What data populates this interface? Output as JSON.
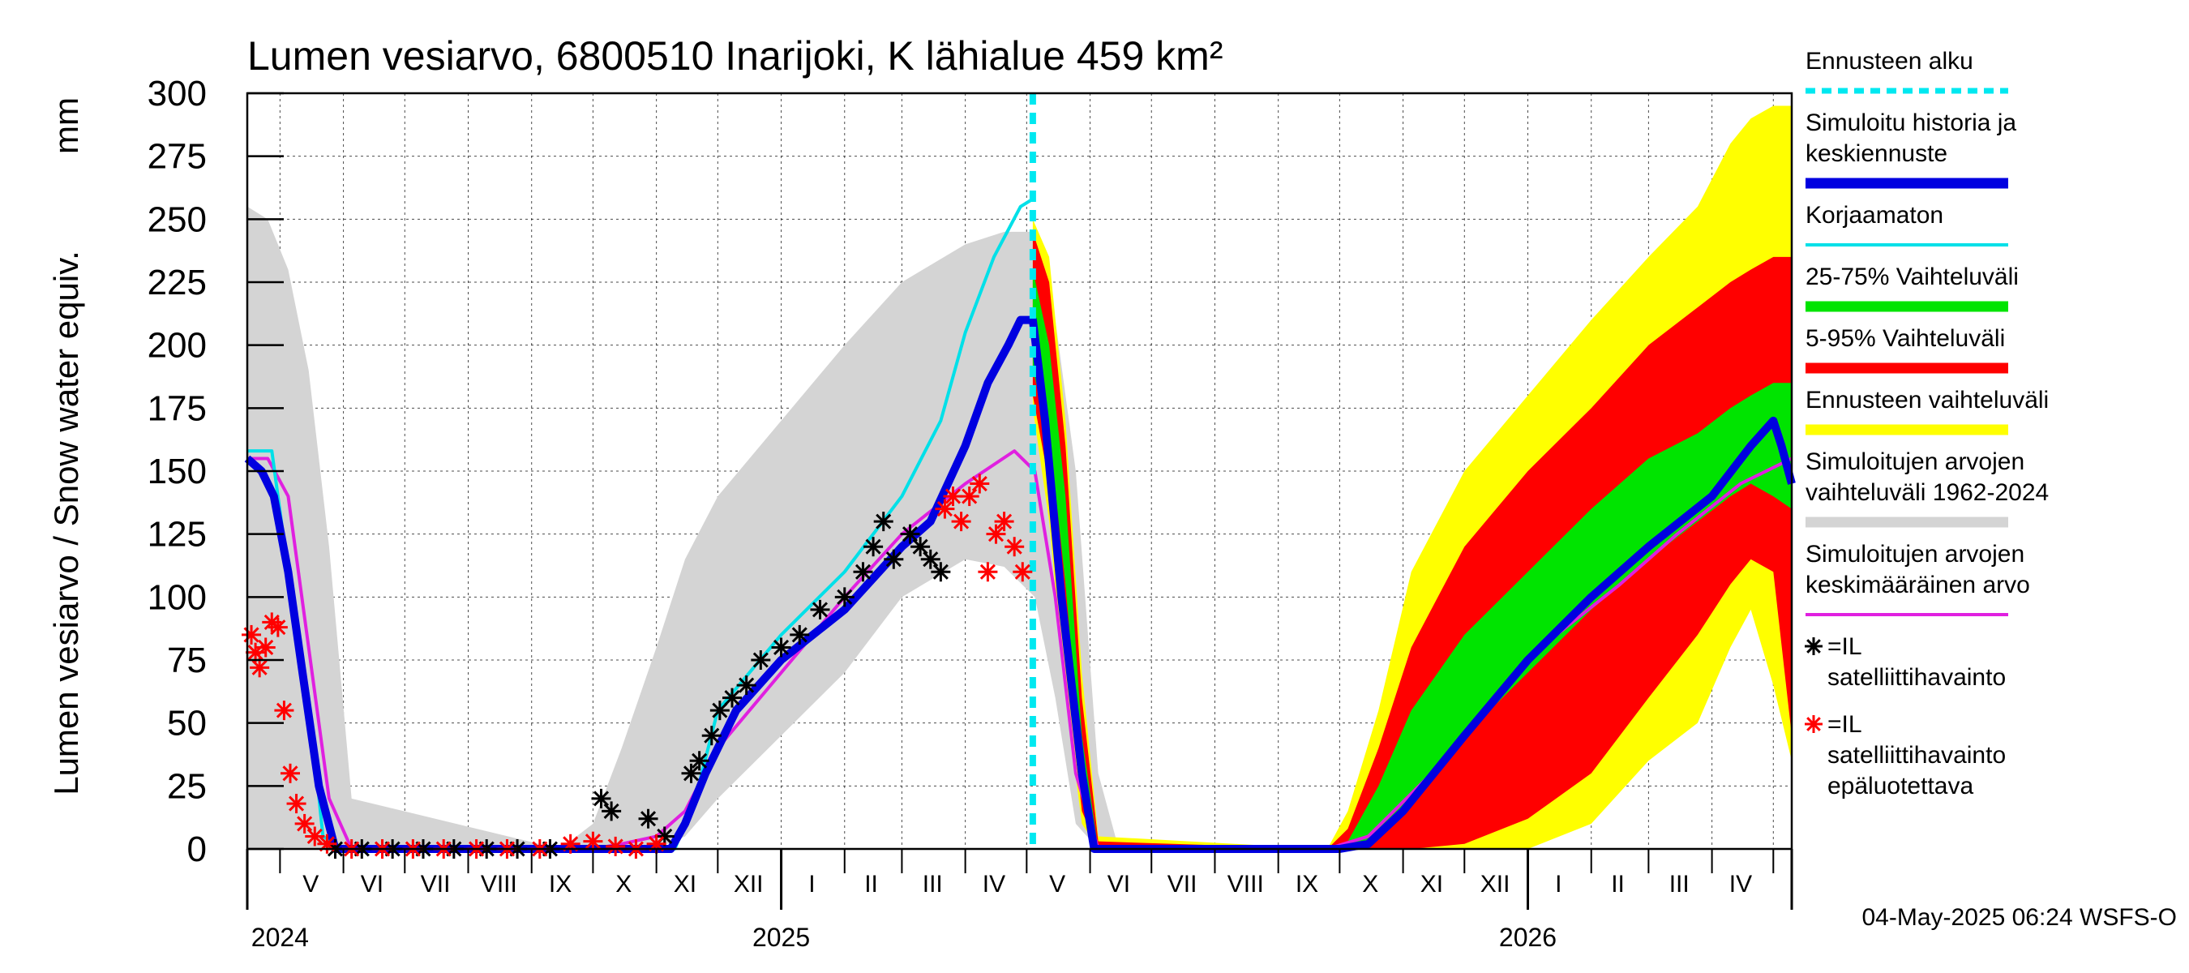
{
  "chart_data": {
    "type": "line",
    "title": "Lumen vesiarvo, 6800510 Inarijoki, K lähialue 459 km²",
    "ylabel": "Lumen vesiarvo / Snow water equiv.",
    "yunit": "mm",
    "ylim": [
      0,
      300
    ],
    "yticks": [
      0,
      25,
      50,
      75,
      100,
      125,
      150,
      175,
      200,
      225,
      250,
      275,
      300
    ],
    "x_start": "2024-04-15",
    "x_end": "2026-05-10",
    "forecast_start": "2025-05-04",
    "month_labels": [
      {
        "label": "V",
        "date": "2024-05-16"
      },
      {
        "label": "VI",
        "date": "2024-06-15"
      },
      {
        "label": "VII",
        "date": "2024-07-16"
      },
      {
        "label": "VIII",
        "date": "2024-08-16"
      },
      {
        "label": "IX",
        "date": "2024-09-15"
      },
      {
        "label": "X",
        "date": "2024-10-16"
      },
      {
        "label": "XI",
        "date": "2024-11-15"
      },
      {
        "label": "XII",
        "date": "2024-12-16"
      },
      {
        "label": "I",
        "date": "2025-01-16"
      },
      {
        "label": "II",
        "date": "2025-02-14"
      },
      {
        "label": "III",
        "date": "2025-03-16"
      },
      {
        "label": "IV",
        "date": "2025-04-15"
      },
      {
        "label": "V",
        "date": "2025-05-16"
      },
      {
        "label": "VI",
        "date": "2025-06-15"
      },
      {
        "label": "VII",
        "date": "2025-07-16"
      },
      {
        "label": "VIII",
        "date": "2025-08-16"
      },
      {
        "label": "IX",
        "date": "2025-09-15"
      },
      {
        "label": "X",
        "date": "2025-10-16"
      },
      {
        "label": "XI",
        "date": "2025-11-15"
      },
      {
        "label": "XII",
        "date": "2025-12-16"
      },
      {
        "label": "I",
        "date": "2026-01-16"
      },
      {
        "label": "II",
        "date": "2026-02-14"
      },
      {
        "label": "III",
        "date": "2026-03-16"
      },
      {
        "label": "IV",
        "date": "2026-04-15"
      }
    ],
    "year_labels": [
      {
        "label": "2024",
        "date": "2024-05-01"
      },
      {
        "label": "2025",
        "date": "2025-01-01"
      },
      {
        "label": "2026",
        "date": "2026-01-01"
      }
    ],
    "series": [
      {
        "name": "Simuloitujen arvojen vaihteluväli 1962-2024",
        "kind": "band",
        "color": "#d4d4d4",
        "x": [
          "2024-04-15",
          "2024-04-25",
          "2024-05-05",
          "2024-05-15",
          "2024-05-25",
          "2024-06-05",
          "2024-09-15",
          "2024-10-01",
          "2024-10-15",
          "2024-11-01",
          "2024-11-15",
          "2024-12-01",
          "2025-01-01",
          "2025-02-01",
          "2025-03-01",
          "2025-04-01",
          "2025-04-20",
          "2025-05-05",
          "2025-05-15",
          "2025-05-25",
          "2025-06-05",
          "2025-06-15"
        ],
        "low": [
          0,
          0,
          0,
          0,
          0,
          0,
          0,
          0,
          0,
          0,
          5,
          20,
          45,
          70,
          100,
          115,
          112,
          100,
          60,
          10,
          0,
          0
        ],
        "high": [
          255,
          250,
          230,
          190,
          120,
          20,
          0,
          10,
          40,
          80,
          115,
          140,
          170,
          200,
          225,
          240,
          245,
          245,
          210,
          150,
          30,
          0
        ]
      },
      {
        "name": "Ennusteen vaihteluväli",
        "kind": "band",
        "color": "#ffff00",
        "x": [
          "2025-05-04",
          "2025-05-12",
          "2025-05-20",
          "2025-05-28",
          "2025-06-05",
          "2025-09-25",
          "2025-10-05",
          "2025-10-20",
          "2025-11-05",
          "2025-12-01",
          "2026-01-01",
          "2026-02-01",
          "2026-03-01",
          "2026-03-25",
          "2026-04-10",
          "2026-04-20",
          "2026-05-01",
          "2026-05-10"
        ],
        "low": [
          175,
          130,
          60,
          10,
          0,
          0,
          0,
          0,
          0,
          0,
          0,
          10,
          35,
          50,
          80,
          95,
          65,
          35
        ],
        "high": [
          250,
          235,
          170,
          70,
          5,
          0,
          15,
          55,
          110,
          150,
          180,
          210,
          235,
          255,
          280,
          290,
          295,
          295
        ]
      },
      {
        "name": "5-95% Vaihteluväli",
        "kind": "band",
        "color": "#ff0000",
        "x": [
          "2025-05-04",
          "2025-05-12",
          "2025-05-20",
          "2025-05-28",
          "2025-06-05",
          "2025-09-25",
          "2025-10-05",
          "2025-10-20",
          "2025-11-05",
          "2025-12-01",
          "2026-01-01",
          "2026-02-01",
          "2026-03-01",
          "2026-03-25",
          "2026-04-10",
          "2026-04-20",
          "2026-05-01",
          "2026-05-10"
        ],
        "low": [
          180,
          145,
          75,
          15,
          0,
          0,
          0,
          0,
          0,
          2,
          12,
          30,
          60,
          85,
          105,
          115,
          110,
          45
        ],
        "high": [
          245,
          225,
          160,
          60,
          3,
          0,
          8,
          40,
          80,
          120,
          150,
          175,
          200,
          215,
          225,
          230,
          235,
          235
        ]
      },
      {
        "name": "25-75% Vaihteluväli",
        "kind": "band",
        "color": "#00e400",
        "x": [
          "2025-05-04",
          "2025-05-12",
          "2025-05-20",
          "2025-05-28",
          "2025-06-05",
          "2025-09-25",
          "2025-10-05",
          "2025-10-20",
          "2025-11-05",
          "2025-12-01",
          "2026-01-01",
          "2026-02-01",
          "2026-03-01",
          "2026-03-25",
          "2026-04-10",
          "2026-04-20",
          "2026-05-01",
          "2026-05-10"
        ],
        "low": [
          190,
          165,
          105,
          30,
          0,
          0,
          0,
          5,
          20,
          45,
          70,
          95,
          115,
          130,
          140,
          145,
          140,
          135
        ],
        "high": [
          230,
          200,
          140,
          45,
          0,
          0,
          3,
          25,
          55,
          85,
          110,
          135,
          155,
          165,
          175,
          180,
          185,
          185
        ]
      },
      {
        "name": "Simuloitujen arvojen keskimääräinen arvo",
        "kind": "line",
        "color": "#e020e0",
        "width": 4,
        "x": [
          "2024-04-15",
          "2024-04-25",
          "2024-05-05",
          "2024-05-15",
          "2024-05-25",
          "2024-06-05",
          "2024-09-15",
          "2024-10-01",
          "2024-10-15",
          "2024-11-01",
          "2024-11-15",
          "2024-12-01",
          "2025-01-01",
          "2025-02-01",
          "2025-03-01",
          "2025-04-01",
          "2025-04-25",
          "2025-05-05",
          "2025-05-15",
          "2025-05-25",
          "2025-06-05",
          "2025-09-25",
          "2025-10-15",
          "2025-11-15",
          "2025-12-15",
          "2026-01-15",
          "2026-02-15",
          "2026-03-15",
          "2026-04-15",
          "2026-05-10"
        ],
        "y": [
          155,
          155,
          140,
          80,
          20,
          0,
          0,
          0,
          2,
          5,
          15,
          40,
          70,
          100,
          125,
          145,
          158,
          150,
          100,
          30,
          0,
          0,
          5,
          30,
          60,
          85,
          105,
          125,
          145,
          155
        ]
      },
      {
        "name": "Korjaamaton",
        "kind": "line",
        "color": "#00e0e8",
        "width": 4,
        "x": [
          "2024-04-15",
          "2024-04-27",
          "2024-05-05",
          "2024-05-15",
          "2024-05-22",
          "2024-06-01",
          "2024-11-01",
          "2024-11-10",
          "2024-11-20",
          "2024-12-01",
          "2025-01-01",
          "2025-02-01",
          "2025-03-01",
          "2025-03-20",
          "2025-04-01",
          "2025-04-15",
          "2025-04-28",
          "2025-05-04"
        ],
        "y": [
          158,
          158,
          110,
          60,
          5,
          0,
          0,
          0,
          20,
          55,
          85,
          110,
          140,
          170,
          205,
          235,
          255,
          258
        ]
      },
      {
        "name": "Simuloitu historia ja keskiennuste",
        "kind": "line",
        "color": "#0000e0",
        "width": 10,
        "x": [
          "2024-04-15",
          "2024-04-22",
          "2024-04-28",
          "2024-05-05",
          "2024-05-12",
          "2024-05-20",
          "2024-05-28",
          "2024-11-02",
          "2024-11-08",
          "2024-11-15",
          "2024-11-25",
          "2024-12-10",
          "2025-01-01",
          "2025-02-01",
          "2025-03-01",
          "2025-03-15",
          "2025-04-01",
          "2025-04-12",
          "2025-04-22",
          "2025-04-28",
          "2025-05-04",
          "2025-05-10",
          "2025-05-18",
          "2025-05-28",
          "2025-06-03",
          "2025-10-01",
          "2025-10-15",
          "2025-11-01",
          "2025-12-01",
          "2026-01-01",
          "2026-02-01",
          "2026-03-01",
          "2026-04-01",
          "2026-04-20",
          "2026-05-01",
          "2026-05-05",
          "2026-05-10"
        ],
        "y": [
          155,
          150,
          140,
          110,
          70,
          25,
          0,
          0,
          0,
          10,
          30,
          55,
          75,
          95,
          120,
          130,
          160,
          185,
          200,
          210,
          210,
          170,
          100,
          30,
          0,
          0,
          2,
          15,
          45,
          75,
          100,
          120,
          140,
          160,
          170,
          160,
          145
        ]
      },
      {
        "name": "=IL satelliittihavainto",
        "kind": "markers",
        "color": "#000000",
        "marker": "asterisk",
        "x": [
          "2024-05-28",
          "2024-06-10",
          "2024-06-25",
          "2024-07-10",
          "2024-07-25",
          "2024-08-10",
          "2024-08-25",
          "2024-09-10",
          "2024-10-05",
          "2024-10-10",
          "2024-10-28",
          "2024-11-05",
          "2024-11-18",
          "2024-11-22",
          "2024-11-28",
          "2024-12-02",
          "2024-12-08",
          "2024-12-15",
          "2024-12-22",
          "2025-01-01",
          "2025-01-10",
          "2025-01-20",
          "2025-02-01",
          "2025-02-10",
          "2025-02-15",
          "2025-02-20",
          "2025-02-25",
          "2025-03-05",
          "2025-03-10",
          "2025-03-15",
          "2025-03-20"
        ],
        "y": [
          0,
          0,
          0,
          0,
          0,
          0,
          0,
          0,
          20,
          15,
          12,
          5,
          30,
          35,
          45,
          55,
          60,
          65,
          75,
          80,
          85,
          95,
          100,
          110,
          120,
          130,
          115,
          125,
          120,
          115,
          110
        ]
      },
      {
        "name": "=IL satelliittihavainto epäluotettava",
        "kind": "markers",
        "color": "#ff0000",
        "marker": "asterisk",
        "x": [
          "2024-04-17",
          "2024-04-19",
          "2024-04-21",
          "2024-04-24",
          "2024-04-27",
          "2024-04-30",
          "2024-05-03",
          "2024-05-06",
          "2024-05-09",
          "2024-05-13",
          "2024-05-18",
          "2024-05-24",
          "2024-06-05",
          "2024-06-20",
          "2024-07-05",
          "2024-07-20",
          "2024-08-05",
          "2024-08-20",
          "2024-09-05",
          "2024-09-20",
          "2024-10-01",
          "2024-10-12",
          "2024-10-22",
          "2024-11-01",
          "2025-03-22",
          "2025-03-26",
          "2025-03-30",
          "2025-04-03",
          "2025-04-08",
          "2025-04-12",
          "2025-04-16",
          "2025-04-20",
          "2025-04-25",
          "2025-04-29"
        ],
        "y": [
          85,
          78,
          72,
          80,
          90,
          88,
          55,
          30,
          18,
          10,
          5,
          2,
          0,
          0,
          0,
          0,
          0,
          0,
          0,
          2,
          3,
          1,
          0,
          2,
          135,
          140,
          130,
          140,
          145,
          110,
          125,
          130,
          120,
          110
        ]
      }
    ],
    "legend": [
      {
        "label": "Ennusteen alku",
        "color": "#00e8f0",
        "style": "dashed"
      },
      {
        "label": "Simuloitu historia ja keskiennuste",
        "color": "#0000e0",
        "style": "thick"
      },
      {
        "label": "Korjaamaton",
        "color": "#00e0e8",
        "style": "line"
      },
      {
        "label": "25-75% Vaihteluväli",
        "color": "#00e400",
        "style": "thick"
      },
      {
        "label": "5-95% Vaihteluväli",
        "color": "#ff0000",
        "style": "thick"
      },
      {
        "label": "Ennusteen vaihteluväli",
        "color": "#ffff00",
        "style": "thick"
      },
      {
        "label": "Simuloitujen arvojen vaihteluväli 1962-2024",
        "color": "#d4d4d4",
        "style": "thick"
      },
      {
        "label": "Simuloitujen arvojen keskimääräinen arvo",
        "color": "#e020e0",
        "style": "line"
      },
      {
        "label": "=IL satelliittihavainto",
        "color": "#000000",
        "style": "asterisk"
      },
      {
        "label": "=IL satelliittihavainto epäluotettava",
        "color": "#ff0000",
        "style": "asterisk"
      }
    ],
    "legend_position": "right",
    "footer": "04-May-2025 06:24 WSFS-O"
  }
}
